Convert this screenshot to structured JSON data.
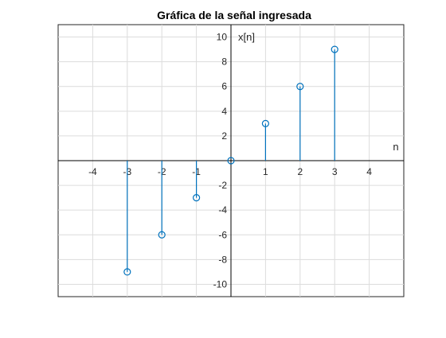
{
  "chart_data": {
    "type": "stem",
    "title": "Gráfica de la señal ingresada",
    "xlabel": "n",
    "ylabel": "x[n]",
    "x": [
      -3,
      -2,
      -1,
      0,
      1,
      2,
      3
    ],
    "values": [
      -9,
      -6,
      -3,
      0,
      3,
      6,
      9
    ],
    "xlim": [
      -5,
      5
    ],
    "ylim": [
      -11,
      11
    ],
    "xticks": [
      -4,
      -3,
      -2,
      -1,
      1,
      2,
      3,
      4
    ],
    "yticks": [
      -10,
      -8,
      -6,
      -4,
      -2,
      2,
      4,
      6,
      8,
      10
    ],
    "grid": true,
    "axes_through_origin": true,
    "color": "#0072bd",
    "marker": "circle-open"
  }
}
